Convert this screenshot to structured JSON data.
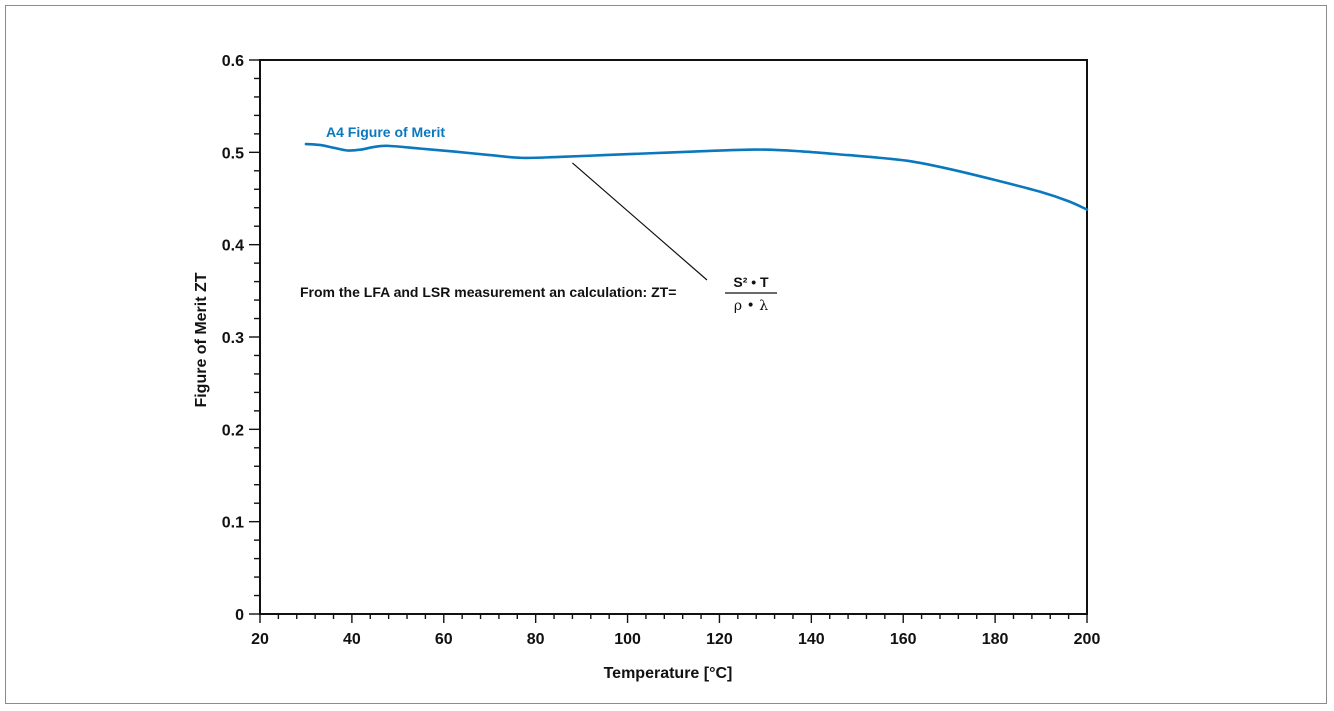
{
  "colors": {
    "series": "#0a78be",
    "axis": "#111111",
    "frame": "#8c8c8c"
  },
  "chart_data": {
    "type": "line",
    "title": "",
    "xlabel": "Temperature [°C]",
    "ylabel": "Figure of Merit ZT",
    "xlim": [
      20,
      200
    ],
    "ylim": [
      0,
      0.6
    ],
    "x_ticks": [
      20,
      40,
      60,
      80,
      100,
      120,
      140,
      160,
      180,
      200
    ],
    "x_tick_labels": [
      "20",
      "40",
      "60",
      "80",
      "100",
      "120",
      "140",
      "160",
      "180",
      "200"
    ],
    "y_ticks": [
      0,
      0.1,
      0.2,
      0.3,
      0.4,
      0.5,
      0.6
    ],
    "y_tick_labels": [
      "0",
      "0.1",
      "0.2",
      "0.3",
      "0.4",
      "0.5",
      "0.6"
    ],
    "grid": false,
    "series": [
      {
        "name": "A4 Figure of Merit",
        "color": "#0a78be",
        "x": [
          30,
          33,
          36,
          39,
          42,
          45,
          48,
          55,
          62,
          70,
          77,
          85,
          95,
          105,
          115,
          128,
          138,
          148,
          155,
          162,
          170,
          180,
          190,
          196,
          200
        ],
        "y": [
          0.509,
          0.508,
          0.505,
          0.502,
          0.503,
          0.506,
          0.507,
          0.504,
          0.501,
          0.497,
          0.494,
          0.495,
          0.497,
          0.499,
          0.501,
          0.503,
          0.501,
          0.497,
          0.494,
          0.49,
          0.482,
          0.47,
          0.457,
          0.447,
          0.438
        ]
      }
    ],
    "annotation": {
      "text": "From the LFA and LSR measurement an calculation: ZT=",
      "numerator": "S² • T",
      "denominator": "ρ • λ",
      "pointer_x": 88,
      "pointer_y": 0.495
    }
  }
}
